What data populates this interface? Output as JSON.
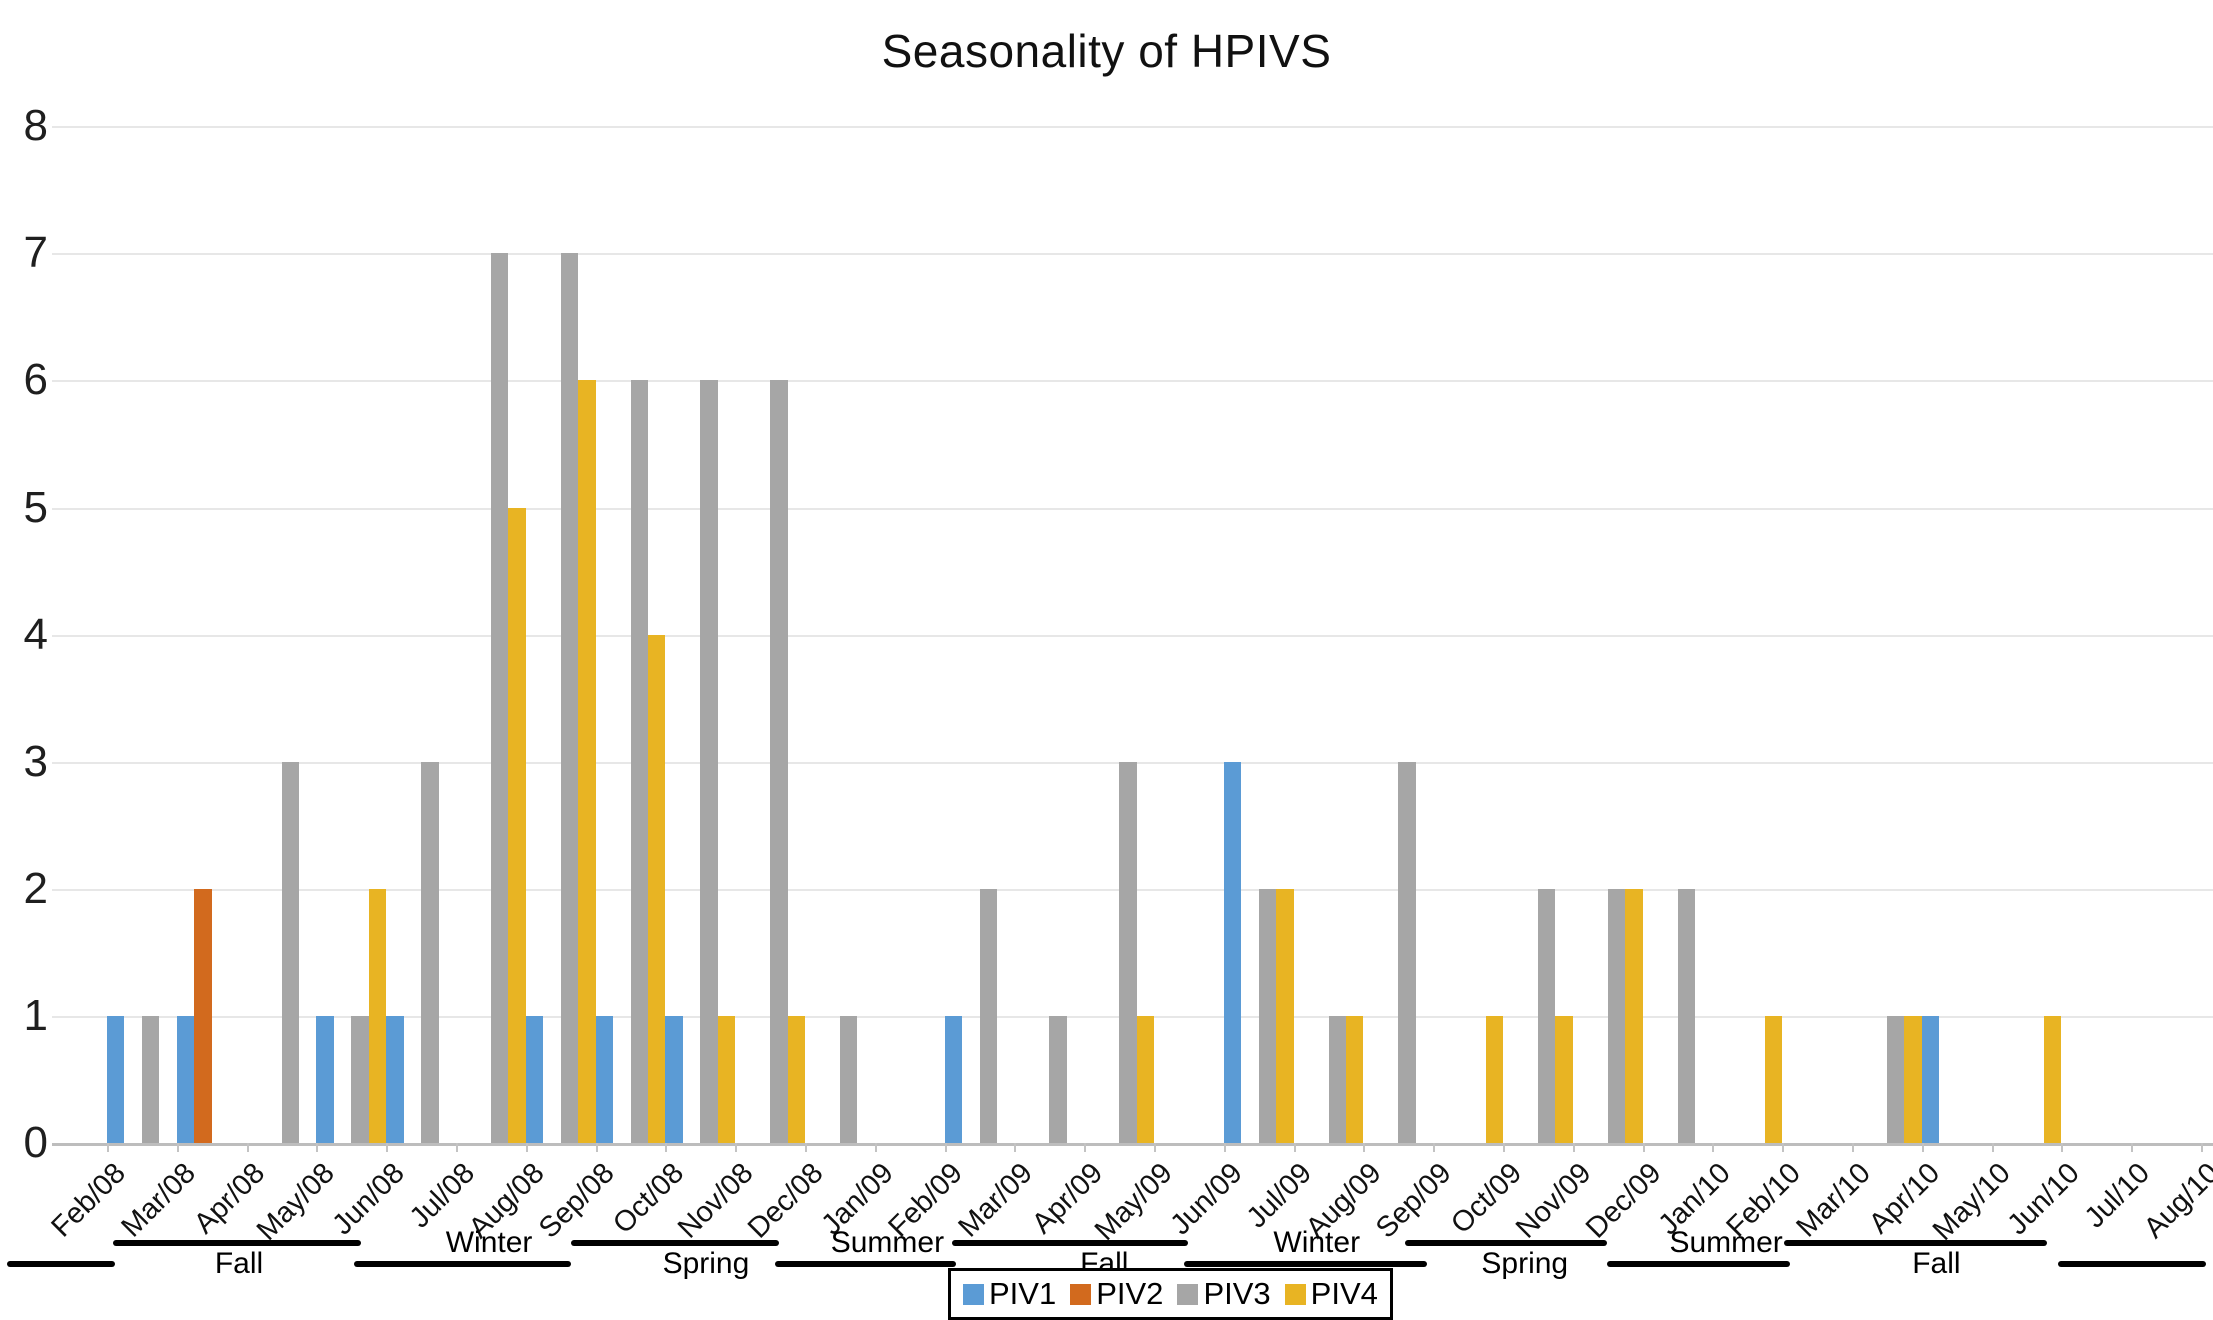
{
  "title": "Seasonality of HPIVS",
  "chart_data": {
    "type": "bar",
    "title": "Seasonality of HPIVS",
    "xlabel": "",
    "ylabel": "",
    "ylim": [
      0,
      8
    ],
    "yticks": [
      "0",
      "1",
      "2",
      "3",
      "4",
      "5",
      "6",
      "7",
      "8"
    ],
    "grid": true,
    "legend_position": "bottom-center",
    "categories": [
      "Feb/08",
      "Mar/08",
      "Apr/08",
      "May/08",
      "Jun/08",
      "Jul/08",
      "Aug/08",
      "Sep/08",
      "Oct/08",
      "Nov/08",
      "Dec/08",
      "Jan/09",
      "Feb/09",
      "Mar/09",
      "Apr/09",
      "May/09",
      "Jun/09",
      "Jul/09",
      "Aug/09",
      "Sep/09",
      "Oct/09",
      "Nov/09",
      "Dec/09",
      "Jan/10",
      "Feb/10",
      "Mar/10",
      "Apr/10",
      "May/10",
      "Jun/10",
      "Jul/10",
      "Aug/10"
    ],
    "series": [
      {
        "name": "PIV1",
        "color": "#5B9BD5",
        "values": [
          1,
          1,
          0,
          1,
          1,
          0,
          1,
          1,
          1,
          0,
          0,
          0,
          1,
          0,
          0,
          0,
          3,
          0,
          0,
          0,
          0,
          0,
          0,
          0,
          0,
          0,
          1,
          0,
          0,
          0,
          0
        ]
      },
      {
        "name": "PIV2",
        "color": "#D26A1E",
        "values": [
          0,
          2,
          0,
          0,
          0,
          0,
          0,
          0,
          0,
          0,
          0,
          0,
          0,
          0,
          0,
          0,
          0,
          0,
          0,
          0,
          0,
          0,
          0,
          0,
          0,
          0,
          0,
          0,
          0,
          0,
          0
        ]
      },
      {
        "name": "PIV3",
        "color": "#A6A6A6",
        "values": [
          1,
          0,
          3,
          1,
          3,
          7,
          7,
          6,
          6,
          6,
          1,
          0,
          2,
          1,
          3,
          0,
          2,
          1,
          3,
          0,
          2,
          2,
          2,
          0,
          0,
          1,
          0,
          0,
          0,
          0,
          0
        ]
      },
      {
        "name": "PIV4",
        "color": "#E8B423",
        "values": [
          0,
          0,
          0,
          2,
          0,
          5,
          6,
          4,
          1,
          1,
          0,
          0,
          0,
          0,
          1,
          0,
          2,
          1,
          0,
          1,
          1,
          2,
          0,
          1,
          0,
          1,
          0,
          1,
          0,
          0,
          0
        ]
      }
    ],
    "season_bands": [
      {
        "label": "",
        "x_start_pct": 0.3,
        "x_end_pct": 5.2,
        "label_x_pct": null,
        "level": "lower"
      },
      {
        "label": "Fall",
        "x_start_pct": 5.1,
        "x_end_pct": 16.3,
        "label_x_pct": 10.8,
        "level": "upper"
      },
      {
        "label": "Winter",
        "x_start_pct": 16.0,
        "x_end_pct": 25.8,
        "label_x_pct": 22.1,
        "level": "lower"
      },
      {
        "label": "Spring",
        "x_start_pct": 25.8,
        "x_end_pct": 35.2,
        "label_x_pct": 31.9,
        "level": "upper"
      },
      {
        "label": "Summer",
        "x_start_pct": 35.0,
        "x_end_pct": 43.2,
        "label_x_pct": 40.1,
        "level": "lower"
      },
      {
        "label": "Fall",
        "x_start_pct": 43.0,
        "x_end_pct": 53.7,
        "label_x_pct": 49.9,
        "level": "upper"
      },
      {
        "label": "Winter",
        "x_start_pct": 53.5,
        "x_end_pct": 64.5,
        "label_x_pct": 59.5,
        "level": "lower"
      },
      {
        "label": "Spring",
        "x_start_pct": 63.5,
        "x_end_pct": 72.6,
        "label_x_pct": 68.9,
        "level": "upper"
      },
      {
        "label": "Summer",
        "x_start_pct": 72.6,
        "x_end_pct": 80.9,
        "label_x_pct": 78.0,
        "level": "lower"
      },
      {
        "label": "Fall",
        "x_start_pct": 80.6,
        "x_end_pct": 92.5,
        "label_x_pct": 87.5,
        "level": "upper"
      },
      {
        "label": "",
        "x_start_pct": 93.0,
        "x_end_pct": 99.7,
        "label_x_pct": null,
        "level": "lower"
      }
    ]
  }
}
